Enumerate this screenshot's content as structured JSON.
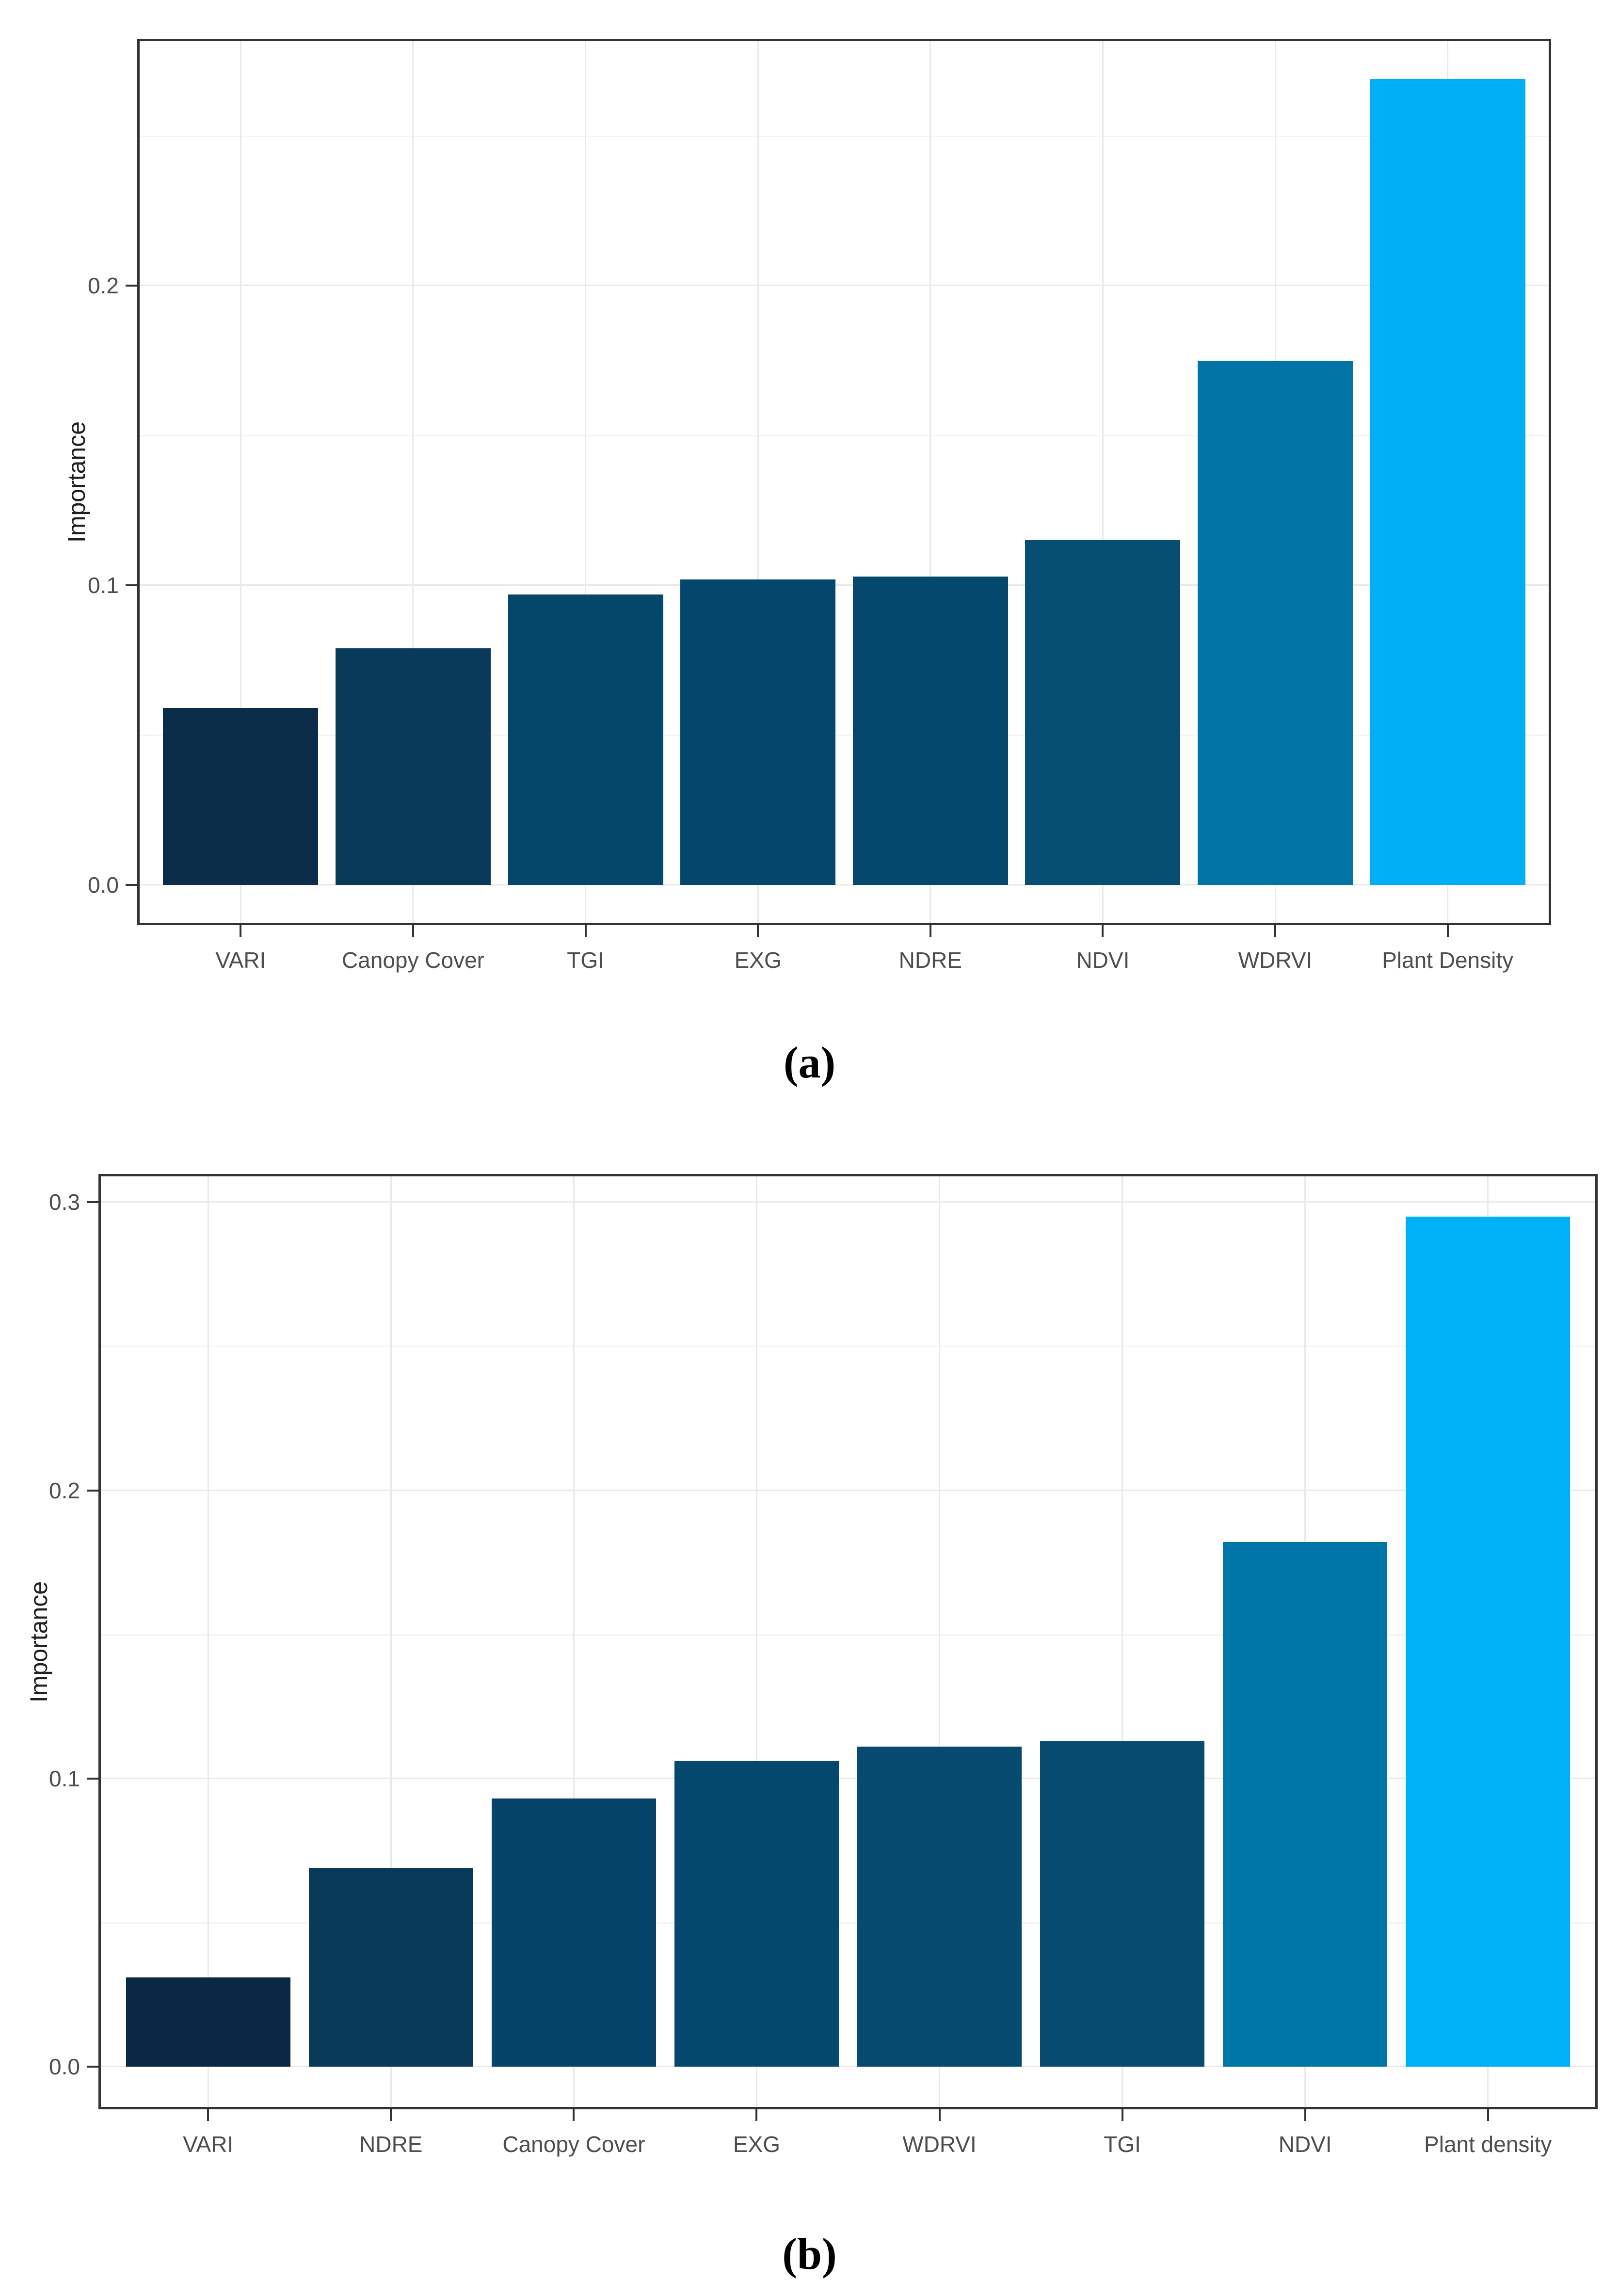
{
  "figure": {
    "description": "Two stacked variable-importance bar charts",
    "background": "#ffffff"
  },
  "style": {
    "axis_text_color": "#4d4d4d",
    "axis_title_color": "#1f1f1f",
    "panel_border_color": "#333333",
    "tick_color": "#333333",
    "grid_major_color": "#e9e9e9",
    "grid_minor_color": "#f4f4f4",
    "lowest_bar_color": "#0b2843",
    "highest_bar_color": "#00b1f7"
  },
  "chart_data": [
    {
      "id": "a",
      "type": "bar",
      "title": "",
      "xlabel": "",
      "ylabel": "Importance",
      "caption": "(a)",
      "grid": true,
      "legend": "none",
      "categories": [
        "VARI",
        "Canopy Cover",
        "TGI",
        "EXG",
        "NDRE",
        "NDVI",
        "WDRVI",
        "Plant Density"
      ],
      "values": [
        0.059,
        0.079,
        0.097,
        0.102,
        0.103,
        0.115,
        0.175,
        0.269
      ],
      "bar_colors": [
        "#0b2d49",
        "#0a3a59",
        "#05466b",
        "#05476c",
        "#05486d",
        "#074e73",
        "#0173a4",
        "#00aff5"
      ],
      "yticks": [
        0.0,
        0.1,
        0.2
      ],
      "ytick_labels": [
        "0.0",
        "0.1",
        "0.2"
      ],
      "yticks_minor": [
        0.05,
        0.15,
        0.25
      ],
      "ylim": [
        -0.0135,
        0.2825
      ]
    },
    {
      "id": "b",
      "type": "bar",
      "title": "",
      "xlabel": "",
      "ylabel": "Importance",
      "caption": "(b)",
      "grid": true,
      "legend": "none",
      "categories": [
        "VARI",
        "NDRE",
        "Canopy Cover",
        "EXG",
        "WDRVI",
        "TGI",
        "NDVI",
        "Plant density"
      ],
      "values": [
        0.031,
        0.069,
        0.093,
        0.106,
        0.111,
        0.113,
        0.182,
        0.295
      ],
      "bar_colors": [
        "#0a2843",
        "#093a59",
        "#054468",
        "#05486d",
        "#064a6f",
        "#064b70",
        "#0076a8",
        "#00b1f7"
      ],
      "yticks": [
        0.0,
        0.1,
        0.2,
        0.3
      ],
      "ytick_labels": [
        "0.0",
        "0.1",
        "0.2",
        "0.3"
      ],
      "yticks_minor": [
        0.05,
        0.15,
        0.25
      ],
      "ylim": [
        -0.0148,
        0.3098
      ]
    }
  ]
}
